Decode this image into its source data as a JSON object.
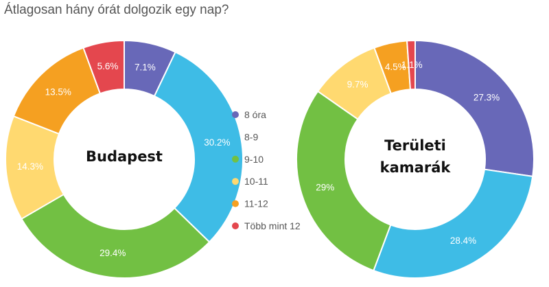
{
  "title": "Átlagosan hány órát dolgozik egy nap?",
  "chart_data": {
    "type": "pie",
    "title": "Átlagosan hány órát dolgozik egy nap?",
    "categories": [
      "8 óra",
      "8-9",
      "9-10",
      "10-11",
      "11-12",
      "Több mint 12"
    ],
    "colors": [
      "#6868b8",
      "#3ebce6",
      "#72c043",
      "#ffd970",
      "#f5a021",
      "#e4474e"
    ],
    "legend_placement": "center",
    "series": [
      {
        "name": "Budapest",
        "center_lines": [
          "Budapest"
        ],
        "values": [
          7.1,
          30.2,
          29.4,
          14.3,
          13.5,
          5.6
        ],
        "labels": [
          "7.1%",
          "30.2%",
          "29.4%",
          "14.3%",
          "13.5%",
          "5.6%"
        ]
      },
      {
        "name": "Területi kamarák",
        "center_lines": [
          "Területi",
          "kamarák"
        ],
        "values": [
          27.3,
          28.4,
          29,
          9.7,
          4.5,
          1.1
        ],
        "labels": [
          "27.3%",
          "28.4%",
          "29%",
          "9.7%",
          "4.5%",
          "1.1%"
        ]
      }
    ]
  }
}
